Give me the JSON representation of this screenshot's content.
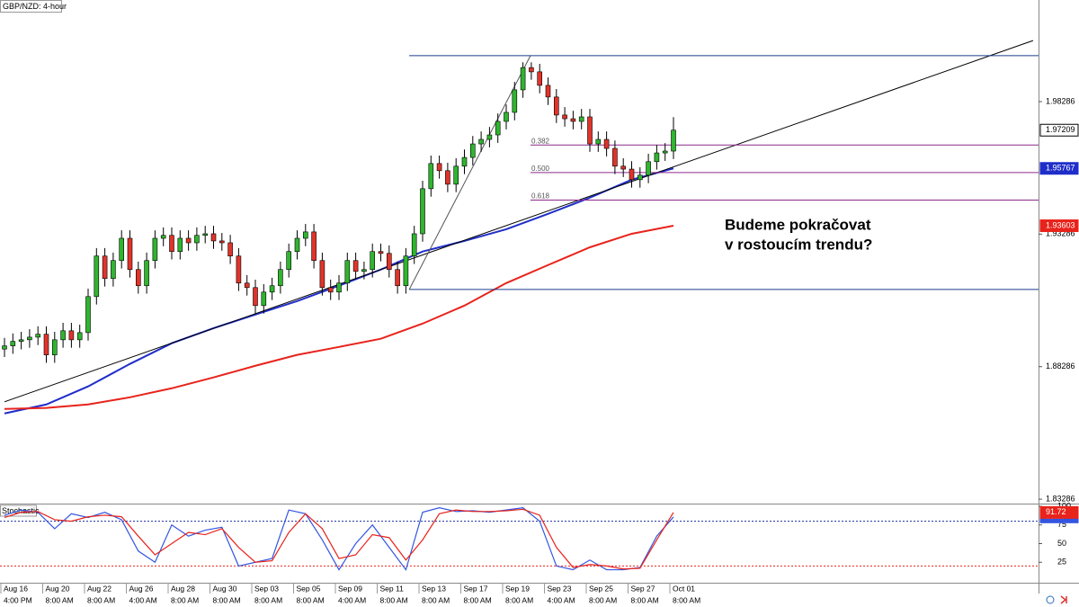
{
  "chart_data": [
    {
      "type": "candlestick",
      "title": "GBP/NZD: 4-hour",
      "categories": [
        "Aug 16",
        null,
        null,
        null,
        null,
        "Aug 20",
        null,
        null,
        null,
        null,
        "Aug 22",
        null,
        null,
        null,
        null,
        "Aug 26",
        null,
        null,
        null,
        null,
        "Aug 28",
        null,
        null,
        null,
        null,
        "Aug 30",
        null,
        null,
        null,
        null,
        "Sep 03",
        null,
        null,
        null,
        null,
        "Sep 05",
        null,
        null,
        null,
        null,
        "Sep 09",
        null,
        null,
        null,
        null,
        "Sep 11",
        null,
        null,
        null,
        null,
        "Sep 13",
        null,
        null,
        null,
        null,
        "Sep 17",
        null,
        null,
        null,
        null,
        "Sep 19",
        null,
        null,
        null,
        null,
        "Sep 23",
        null,
        null,
        null,
        null,
        "Sep 25",
        null,
        null,
        null,
        null,
        "Sep 27",
        null,
        null,
        null,
        null,
        "Oct 01"
      ],
      "category_times": [
        "4:00 PM",
        null,
        null,
        null,
        null,
        "8:00 AM",
        null,
        null,
        null,
        null,
        "8:00 AM",
        null,
        null,
        null,
        null,
        "4:00 AM",
        null,
        null,
        null,
        null,
        "8:00 AM",
        null,
        null,
        null,
        null,
        "8:00 AM",
        null,
        null,
        null,
        null,
        "8:00 AM",
        null,
        null,
        null,
        null,
        "8:00 AM",
        null,
        null,
        null,
        null,
        "4:00 AM",
        null,
        null,
        null,
        null,
        "8:00 AM",
        null,
        null,
        null,
        null,
        "8:00 AM",
        null,
        null,
        null,
        null,
        "8:00 AM",
        null,
        null,
        null,
        null,
        "8:00 AM",
        null,
        null,
        null,
        null,
        "4:00 AM",
        null,
        null,
        null,
        null,
        "8:00 AM",
        null,
        null,
        null,
        null,
        "8:00 AM",
        null,
        null,
        null,
        null,
        "8:00 AM"
      ],
      "open": [
        1.8895,
        1.8907,
        1.8924,
        1.893,
        1.894,
        1.8951,
        1.8873,
        1.893,
        1.8964,
        1.893,
        1.8957,
        1.9093,
        1.9246,
        1.9161,
        1.9229,
        1.9313,
        1.9195,
        1.9134,
        1.9229,
        1.9313,
        1.9324,
        1.9263,
        1.9313,
        1.9296,
        1.9324,
        1.933,
        1.9303,
        1.9296,
        1.9246,
        1.9144,
        1.9127,
        1.9059,
        1.911,
        1.9134,
        1.9195,
        1.9263,
        1.9313,
        1.9337,
        1.9229,
        1.9127,
        1.911,
        1.9144,
        1.9229,
        1.9188,
        1.9195,
        1.9263,
        1.9256,
        1.9195,
        1.9134,
        1.9246,
        1.933,
        1.95,
        1.9595,
        1.9568,
        1.9517,
        1.9585,
        1.9618,
        1.9669,
        1.9686,
        1.9703,
        1.9754,
        1.9788,
        1.9873,
        1.9957,
        1.9941,
        1.989,
        1.9846,
        1.9778,
        1.9764,
        1.9754,
        1.9771,
        1.9669,
        1.9686,
        1.9652,
        1.9585,
        1.9574,
        1.9534,
        1.9551,
        1.9602,
        1.9635,
        1.9642
      ],
      "high": [
        1.8937,
        1.8954,
        1.896,
        1.897,
        1.8981,
        1.8981,
        1.896,
        1.8994,
        1.8994,
        1.8987,
        1.9123,
        1.9276,
        1.9276,
        1.9259,
        1.9343,
        1.9343,
        1.9225,
        1.9259,
        1.9343,
        1.9354,
        1.9354,
        1.9343,
        1.9343,
        1.9354,
        1.936,
        1.936,
        1.9333,
        1.9326,
        1.9276,
        1.9174,
        1.9157,
        1.914,
        1.9164,
        1.9225,
        1.9293,
        1.9343,
        1.9367,
        1.9367,
        1.9259,
        1.9157,
        1.9174,
        1.9259,
        1.9259,
        1.9225,
        1.9293,
        1.9293,
        1.9286,
        1.9225,
        1.9276,
        1.936,
        1.953,
        1.9625,
        1.9625,
        1.9598,
        1.9615,
        1.9648,
        1.9699,
        1.9716,
        1.9733,
        1.9784,
        1.9818,
        1.9903,
        1.9977,
        1.9977,
        1.9971,
        1.992,
        1.9876,
        1.9808,
        1.9794,
        1.9801,
        1.9801,
        1.9716,
        1.9716,
        1.9682,
        1.9615,
        1.9604,
        1.9581,
        1.9632,
        1.9665,
        1.9672,
        1.977
      ],
      "low": [
        1.8865,
        1.8877,
        1.8894,
        1.89,
        1.891,
        1.8843,
        1.8843,
        1.89,
        1.89,
        1.89,
        1.8927,
        1.9063,
        1.9131,
        1.9131,
        1.9199,
        1.9165,
        1.9104,
        1.9104,
        1.9199,
        1.9283,
        1.9233,
        1.9233,
        1.9266,
        1.9266,
        1.9294,
        1.9273,
        1.9266,
        1.9216,
        1.9114,
        1.9097,
        1.9029,
        1.9029,
        1.908,
        1.9104,
        1.9165,
        1.9233,
        1.9283,
        1.9199,
        1.9097,
        1.908,
        1.908,
        1.9114,
        1.9158,
        1.9158,
        1.9165,
        1.9226,
        1.9165,
        1.9104,
        1.9104,
        1.9216,
        1.93,
        1.947,
        1.9538,
        1.9487,
        1.9487,
        1.9555,
        1.9588,
        1.9639,
        1.9656,
        1.9673,
        1.9724,
        1.9758,
        1.9843,
        1.9911,
        1.986,
        1.9816,
        1.9748,
        1.9734,
        1.9724,
        1.9724,
        1.9639,
        1.9639,
        1.9622,
        1.9555,
        1.9544,
        1.9504,
        1.9504,
        1.9521,
        1.9572,
        1.9605,
        1.9612
      ],
      "close": [
        1.8907,
        1.8924,
        1.893,
        1.894,
        1.8951,
        1.8873,
        1.893,
        1.8964,
        1.893,
        1.8957,
        1.9093,
        1.9246,
        1.9161,
        1.9229,
        1.9313,
        1.9195,
        1.9134,
        1.9229,
        1.9313,
        1.9324,
        1.9263,
        1.9313,
        1.9296,
        1.9324,
        1.933,
        1.9303,
        1.9296,
        1.9246,
        1.9144,
        1.9127,
        1.9059,
        1.911,
        1.9134,
        1.9195,
        1.9263,
        1.9313,
        1.9337,
        1.9229,
        1.9127,
        1.911,
        1.9144,
        1.9229,
        1.9188,
        1.9195,
        1.9263,
        1.9256,
        1.9195,
        1.9134,
        1.9246,
        1.933,
        1.95,
        1.9595,
        1.9568,
        1.9517,
        1.9585,
        1.9618,
        1.9669,
        1.9686,
        1.9703,
        1.9754,
        1.9788,
        1.9873,
        1.9957,
        1.9941,
        1.989,
        1.9846,
        1.9778,
        1.9764,
        1.9754,
        1.9771,
        1.9669,
        1.9686,
        1.9652,
        1.9585,
        1.9574,
        1.9534,
        1.9551,
        1.9602,
        1.9635,
        1.9642,
        1.97209
      ],
      "up_color": "#2fb52f",
      "down_color": "#e0342b",
      "ylim": [
        1.8312,
        2.0212
      ],
      "yticks": [
        1.98286,
        1.93286,
        1.88286,
        1.83286
      ],
      "series": [
        {
          "color": "#1f2ec9",
          "x": [
            0,
            5,
            10,
            15,
            20,
            25,
            30,
            35,
            40,
            45,
            50,
            55,
            60,
            65,
            70,
            75,
            80
          ],
          "values": [
            1.8652,
            1.8686,
            1.8754,
            1.8839,
            1.8917,
            1.8974,
            1.9025,
            1.9076,
            1.9134,
            1.9195,
            1.9263,
            1.9303,
            1.9347,
            1.9405,
            1.9466,
            1.9534,
            1.95767
          ]
        },
        {
          "color": "#e8231b",
          "x": [
            0,
            5,
            10,
            15,
            20,
            25,
            30,
            35,
            40,
            45,
            50,
            55,
            60,
            65,
            70,
            75,
            80
          ],
          "values": [
            1.8669,
            1.8673,
            1.8686,
            1.8713,
            1.8747,
            1.8788,
            1.8832,
            1.8873,
            1.8903,
            1.8934,
            1.8991,
            1.9059,
            1.9144,
            1.9212,
            1.9279,
            1.933,
            1.93603
          ]
        }
      ],
      "trendline": {
        "x": [
          0,
          123
        ],
        "values": [
          1.8696,
          2.0059
        ],
        "color": "#000000"
      },
      "swing": {
        "x": [
          48.4,
          62.9
        ],
        "values": [
          1.912,
          2.0002
        ],
        "color": "#1a3e8c"
      },
      "fib_levels": [
        {
          "value": 0.382,
          "label": "0.382"
        },
        {
          "value": 0.5,
          "label": "0.500"
        },
        {
          "value": 0.618,
          "label": "0.618"
        }
      ],
      "fib_color": "#8b2a8b",
      "annotation": [
        "Budeme pokračovat",
        "v rostoucím trendu?"
      ]
    },
    {
      "type": "line",
      "title": "Stochastic",
      "x": [
        0,
        2,
        4,
        6,
        8,
        10,
        12,
        14,
        16,
        18,
        20,
        22,
        24,
        26,
        28,
        30,
        32,
        34,
        36,
        38,
        40,
        42,
        44,
        46,
        48,
        50,
        52,
        54,
        56,
        58,
        60,
        62,
        64,
        66,
        68,
        70,
        72,
        74,
        76,
        78,
        80
      ],
      "series": [
        {
          "color": "#3355e0",
          "values": [
            88,
            95,
            92,
            70,
            90,
            85,
            92,
            82,
            40,
            25,
            75,
            60,
            68,
            72,
            20,
            25,
            30,
            95,
            90,
            55,
            15,
            50,
            75,
            45,
            15,
            92,
            98,
            93,
            94,
            92,
            95,
            98,
            80,
            20,
            15,
            28,
            15,
            15,
            18,
            60,
            85.77
          ]
        },
        {
          "color": "#e8231b",
          "values": [
            85,
            92,
            93,
            82,
            80,
            86,
            88,
            86,
            60,
            35,
            50,
            65,
            62,
            70,
            45,
            25,
            27,
            65,
            90,
            70,
            30,
            35,
            62,
            58,
            28,
            55,
            90,
            95,
            93,
            93,
            94,
            96,
            88,
            45,
            18,
            22,
            20,
            16,
            17,
            55,
            91.72
          ]
        }
      ],
      "ylim": [
        0,
        100
      ],
      "yticks": [
        100,
        75,
        50,
        25
      ],
      "levels": [
        {
          "value": 80,
          "color": "#1f2fa0"
        },
        {
          "value": 20,
          "color": "#e8231b"
        }
      ]
    }
  ]
}
